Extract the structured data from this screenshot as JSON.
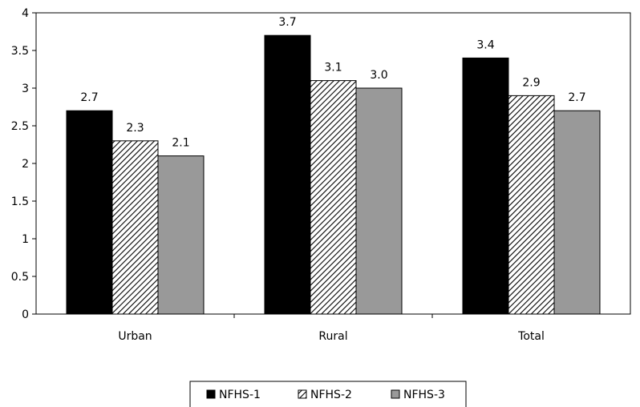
{
  "chart_data": {
    "type": "bar",
    "categories": [
      "Urban",
      "Rural",
      "Total"
    ],
    "series": [
      {
        "name": "NFHS-1",
        "values": [
          2.7,
          3.7,
          3.4
        ],
        "labels": [
          "2.7",
          "3.7",
          "3.4"
        ],
        "color": "#000000",
        "pattern": "solid"
      },
      {
        "name": "NFHS-2",
        "values": [
          2.3,
          3.1,
          2.9
        ],
        "labels": [
          "2.3",
          "3.1",
          "2.9"
        ],
        "color": "#000000",
        "pattern": "diagonal-hatch"
      },
      {
        "name": "NFHS-3",
        "values": [
          2.1,
          3.0,
          2.7
        ],
        "labels": [
          "2.1",
          "3.0",
          "2.7"
        ],
        "color": "#999999",
        "pattern": "solid"
      }
    ],
    "yticks": [
      "0",
      "0.5",
      "1",
      "1.5",
      "2",
      "2.5",
      "3",
      "3.5",
      "4"
    ],
    "ylim": [
      0,
      4
    ],
    "grid": false,
    "legend_position": "bottom"
  }
}
